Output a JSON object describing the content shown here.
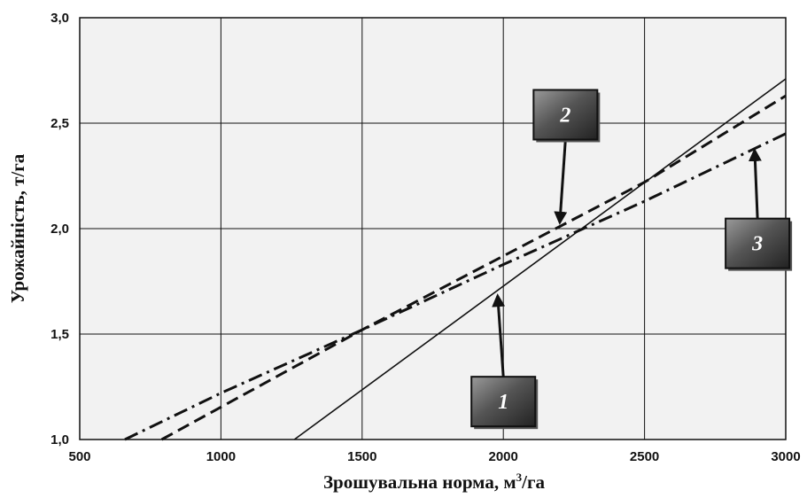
{
  "chart_data": {
    "type": "line",
    "xlabel_main": "Зрошувальна норма, м",
    "xlabel_sup": "3",
    "xlabel_tail": "/га",
    "ylabel": "Урожайність, т/га",
    "xlim": [
      500,
      3000
    ],
    "ylim": [
      1.0,
      3.0
    ],
    "x_ticks": [
      "500",
      "1000",
      "1500",
      "2000",
      "2500",
      "3000"
    ],
    "y_ticks": [
      "1,0",
      "1,5",
      "2,0",
      "2,5",
      "3,0"
    ],
    "grid": true,
    "series": [
      {
        "callout": "1",
        "style": "solid",
        "x": [
          1260,
          3000
        ],
        "y": [
          1.0,
          2.71
        ]
      },
      {
        "callout": "2",
        "style": "dash",
        "x": [
          790,
          1500,
          2000,
          2500,
          3000
        ],
        "y": [
          1.0,
          1.52,
          1.87,
          2.22,
          2.63
        ]
      },
      {
        "callout": "3",
        "style": "dashdot",
        "x": [
          660,
          1000,
          1500,
          2000,
          2500,
          3000
        ],
        "y": [
          1.0,
          1.22,
          1.52,
          1.83,
          2.13,
          2.45
        ]
      }
    ],
    "callouts": [
      {
        "label": "1",
        "target": [
          1980,
          1.68
        ],
        "box_center": [
          2000,
          1.18
        ]
      },
      {
        "label": "2",
        "target": [
          2200,
          2.03
        ],
        "box_center": [
          2220,
          2.54
        ]
      },
      {
        "label": "3",
        "target": [
          2890,
          2.37
        ],
        "box_center": [
          2900,
          1.93
        ]
      }
    ]
  }
}
